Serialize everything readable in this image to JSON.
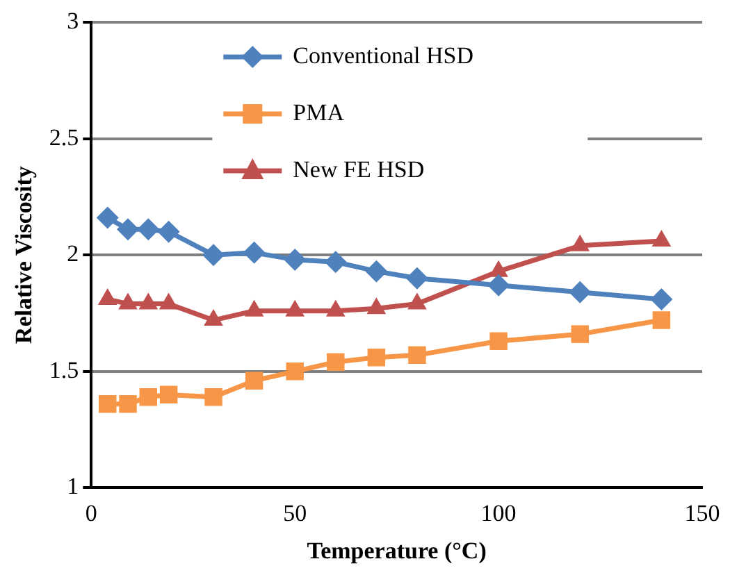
{
  "chart_data": {
    "type": "line",
    "xlabel": "Temperature (°C)",
    "ylabel": "Relative Viscosity",
    "x": [
      4,
      9,
      14,
      19,
      30,
      40,
      50,
      60,
      70,
      80,
      100,
      120,
      140
    ],
    "series": [
      {
        "name": "Conventional HSD",
        "color": "#4f81bd",
        "marker": "diamond",
        "values": [
          2.16,
          2.11,
          2.11,
          2.1,
          2.0,
          2.01,
          1.98,
          1.97,
          1.93,
          1.9,
          1.87,
          1.84,
          1.81
        ]
      },
      {
        "name": "PMA",
        "color": "#f79646",
        "marker": "square",
        "values": [
          1.36,
          1.36,
          1.39,
          1.4,
          1.39,
          1.46,
          1.5,
          1.54,
          1.56,
          1.57,
          1.63,
          1.66,
          1.72
        ]
      },
      {
        "name": "New FE HSD",
        "color": "#c0504d",
        "marker": "triangle",
        "values": [
          1.81,
          1.79,
          1.79,
          1.79,
          1.72,
          1.76,
          1.76,
          1.76,
          1.77,
          1.79,
          1.93,
          2.04,
          2.06
        ]
      }
    ],
    "xlim": [
      0,
      150
    ],
    "xticks": [
      0,
      50,
      100,
      150
    ],
    "ylim": [
      1,
      3
    ],
    "yticks": [
      1,
      1.5,
      2,
      2.5,
      3
    ],
    "grid": "y",
    "legend": "top left",
    "line_style": "solid"
  }
}
